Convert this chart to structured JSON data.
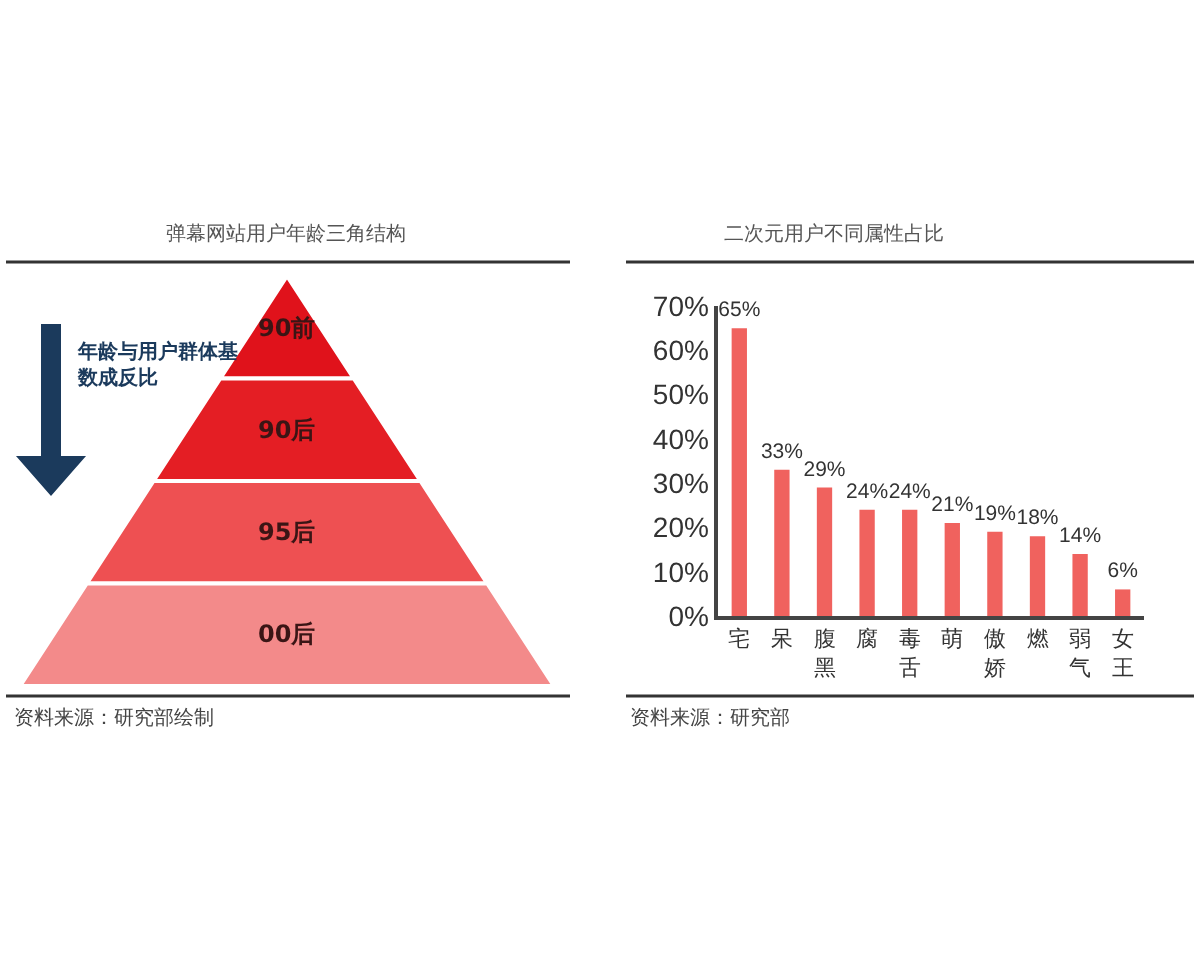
{
  "chart_data": [
    {
      "type": "other",
      "title": "弹幕网站用户年龄三角结构",
      "categories": [
        "90前",
        "90后",
        "95后",
        "00后"
      ],
      "colors": [
        "#e0121b",
        "#e41e24",
        "#ee5052",
        "#f38a8a"
      ],
      "annotations": [
        "年龄与用户群体基数成反比",
        "资料来源：研究部绘制"
      ]
    },
    {
      "type": "bar",
      "title": "二次元用户不同属性占比",
      "categories": [
        "宅",
        "呆",
        "腹黑",
        "腐",
        "毒舌",
        "萌",
        "傲娇",
        "燃",
        "弱气",
        "女王"
      ],
      "values": [
        65,
        33,
        29,
        24,
        24,
        21,
        19,
        18,
        14,
        6
      ],
      "color": "#f0625e",
      "value_labels": [
        "65%",
        "33%",
        "29%",
        "24%",
        "24%",
        "21%",
        "19%",
        "18%",
        "14%",
        "6%"
      ],
      "ylim": [
        0,
        70
      ],
      "yticks": [
        {
          "value": 0,
          "label": "0%"
        },
        {
          "value": 10,
          "label": "10%"
        },
        {
          "value": 20,
          "label": "20%"
        },
        {
          "value": 30,
          "label": "30%"
        },
        {
          "value": 40,
          "label": "40%"
        },
        {
          "value": 50,
          "label": "50%"
        },
        {
          "value": 60,
          "label": "60%"
        },
        {
          "value": 70,
          "label": "70%"
        }
      ],
      "grid": false,
      "annotations": [
        "资料来源：研究部"
      ]
    }
  ]
}
